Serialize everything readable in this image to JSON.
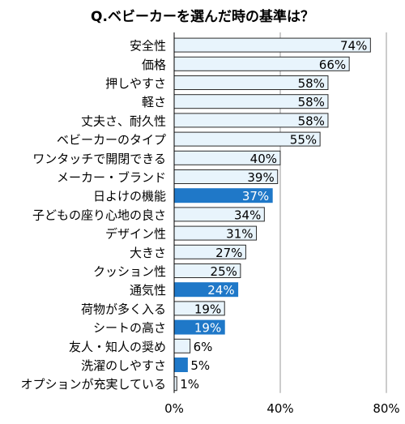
{
  "chart_data": {
    "type": "bar",
    "orientation": "horizontal",
    "title": "Q.ベビーカーを選んだ時の基準は？",
    "categories": [
      "安全性",
      "価格",
      "押しやすさ",
      "軽さ",
      "丈夫さ、耐久性",
      "ベビーカーのタイプ",
      "ワンタッチで開閉できる",
      "メーカー・ブランド",
      "日よけの機能",
      "子どもの座り心地の良さ",
      "デザイン性",
      "大きさ",
      "クッション性",
      "通気性",
      "荷物が多く入る",
      "シートの高さ",
      "友人・知人の奨め",
      "洗濯のしやすさ",
      "オプションが充実している"
    ],
    "values": [
      74,
      66,
      58,
      58,
      58,
      55,
      40,
      39,
      37,
      34,
      31,
      27,
      25,
      24,
      19,
      19,
      6,
      5,
      1
    ],
    "value_labels": [
      "74%",
      "66%",
      "58%",
      "58%",
      "58%",
      "55%",
      "40%",
      "39%",
      "37%",
      "34%",
      "31%",
      "27%",
      "25%",
      "24%",
      "19%",
      "19%",
      "6%",
      "5%",
      "1%"
    ],
    "highlighted": [
      false,
      false,
      false,
      false,
      false,
      false,
      false,
      false,
      true,
      false,
      false,
      false,
      false,
      true,
      false,
      true,
      false,
      true,
      false
    ],
    "xlim": [
      0,
      80
    ],
    "xticks": [
      0,
      40,
      80
    ],
    "xtick_labels": [
      "0%",
      "40%",
      "80%"
    ],
    "grid": "vertical lines at ticks",
    "legend": "none",
    "colors": {
      "normal_fill": "#e8f4fc",
      "normal_stroke": "#2b2b2b",
      "highlight_fill": "#1f78c8",
      "highlight_label": "#ffffff",
      "grid": "#9a9a9a"
    }
  }
}
